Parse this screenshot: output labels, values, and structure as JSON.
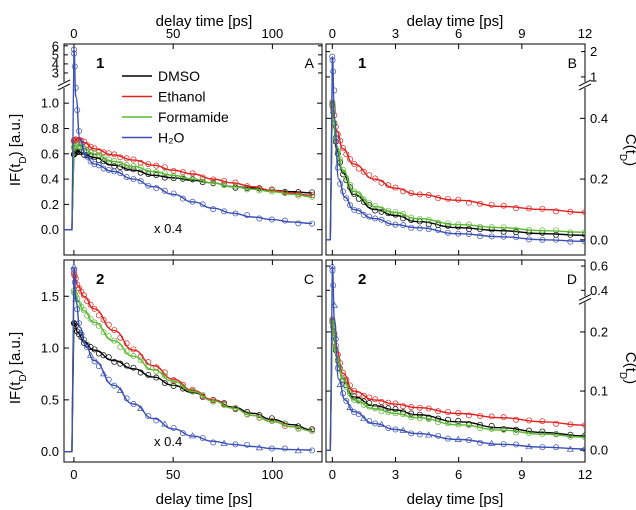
{
  "chart_data": [
    {
      "panel": "A",
      "type": "line",
      "sample_label": "1",
      "xlabel": "delay time [ps]",
      "ylabel": "IF(t_D) [a.u.]",
      "xlim": [
        -5,
        125
      ],
      "ylim_main": [
        -0.2,
        1.12
      ],
      "ylim_break": [
        2,
        6.2
      ],
      "xticks": [
        0,
        50,
        100
      ],
      "yticks_main": [
        0.0,
        0.2,
        0.4,
        0.6,
        0.8,
        1.0
      ],
      "yticks_break": [
        3,
        4,
        5,
        6
      ],
      "annotation": "x 0.4",
      "series": [
        {
          "name": "DMSO",
          "color": "#000000",
          "x": [
            0,
            2,
            5,
            10,
            20,
            30,
            40,
            50,
            60,
            70,
            80,
            90,
            100,
            110,
            120
          ],
          "y": [
            0.6,
            0.62,
            0.6,
            0.57,
            0.51,
            0.47,
            0.43,
            0.41,
            0.39,
            0.37,
            0.34,
            0.33,
            0.31,
            0.3,
            0.29
          ]
        },
        {
          "name": "Ethanol",
          "color": "#e0221f",
          "x": [
            0,
            2,
            5,
            10,
            20,
            30,
            40,
            50,
            60,
            70,
            80,
            90,
            100,
            110,
            120
          ],
          "y": [
            0.7,
            0.72,
            0.69,
            0.64,
            0.59,
            0.55,
            0.51,
            0.47,
            0.44,
            0.4,
            0.37,
            0.34,
            0.31,
            0.29,
            0.27
          ]
        },
        {
          "name": "Formamide",
          "color": "#5bb832",
          "x": [
            0,
            2,
            5,
            10,
            20,
            30,
            40,
            50,
            60,
            70,
            80,
            90,
            100,
            110,
            120
          ],
          "y": [
            0.65,
            0.67,
            0.64,
            0.6,
            0.54,
            0.5,
            0.46,
            0.43,
            0.4,
            0.37,
            0.34,
            0.32,
            0.3,
            0.28,
            0.26
          ]
        },
        {
          "name": "H₂O",
          "color": "#3a4fb5",
          "x": [
            0,
            1,
            3,
            6,
            10,
            20,
            30,
            40,
            50,
            60,
            70,
            80,
            90,
            100,
            110,
            120
          ],
          "y": [
            5.6,
            1.05,
            0.72,
            0.58,
            0.52,
            0.46,
            0.4,
            0.34,
            0.28,
            0.22,
            0.17,
            0.13,
            0.1,
            0.08,
            0.06,
            0.05
          ]
        }
      ]
    },
    {
      "panel": "B",
      "type": "line",
      "sample_label": "1",
      "xlabel": "delay time [ps]",
      "ylabel": "C(t_D)",
      "xlim": [
        -0.3,
        12
      ],
      "ylim_main": [
        -0.05,
        0.5
      ],
      "ylim_break": [
        0.8,
        2.3
      ],
      "xticks": [
        0,
        3,
        6,
        9,
        12
      ],
      "yticks_main": [
        0.0,
        0.2,
        0.4
      ],
      "yticks_break": [
        1,
        2
      ],
      "series": [
        {
          "name": "DMSO",
          "color": "#000000",
          "x": [
            0,
            0.2,
            0.5,
            1,
            2,
            3,
            4,
            6,
            8,
            10,
            12
          ],
          "y": [
            0.45,
            0.3,
            0.22,
            0.15,
            0.1,
            0.08,
            0.06,
            0.04,
            0.03,
            0.02,
            0.015
          ]
        },
        {
          "name": "Ethanol",
          "color": "#e0221f",
          "x": [
            0,
            0.2,
            0.5,
            1,
            2,
            3,
            4,
            6,
            8,
            10,
            12
          ],
          "y": [
            0.45,
            0.36,
            0.3,
            0.25,
            0.2,
            0.17,
            0.15,
            0.13,
            0.11,
            0.1,
            0.09
          ]
        },
        {
          "name": "Formamide",
          "color": "#5bb832",
          "x": [
            0,
            0.2,
            0.5,
            1,
            2,
            3,
            4,
            6,
            8,
            10,
            12
          ],
          "y": [
            0.45,
            0.31,
            0.23,
            0.16,
            0.11,
            0.09,
            0.07,
            0.05,
            0.04,
            0.03,
            0.025
          ]
        },
        {
          "name": "H₂O",
          "color": "#3a4fb5",
          "x": [
            0,
            0.1,
            0.3,
            0.6,
            1,
            2,
            3,
            4,
            6,
            8,
            10,
            12
          ],
          "y": [
            1.8,
            0.4,
            0.2,
            0.14,
            0.1,
            0.07,
            0.05,
            0.04,
            0.02,
            0.01,
            0.0,
            -0.005
          ]
        }
      ]
    },
    {
      "panel": "C",
      "type": "line",
      "sample_label": "2",
      "xlabel": "delay time [ps]",
      "ylabel": "IF(t_D) [a.u.]",
      "xlim": [
        -5,
        125
      ],
      "ylim": [
        -0.1,
        1.85
      ],
      "xticks": [
        0,
        50,
        100
      ],
      "yticks": [
        0.0,
        0.5,
        1.0,
        1.5
      ],
      "annotation": "x 0.4",
      "series": [
        {
          "name": "DMSO",
          "color": "#000000",
          "x": [
            0,
            2,
            5,
            10,
            20,
            30,
            40,
            50,
            60,
            70,
            80,
            90,
            100,
            110,
            120
          ],
          "y": [
            1.25,
            1.15,
            1.06,
            0.98,
            0.88,
            0.8,
            0.72,
            0.64,
            0.57,
            0.5,
            0.43,
            0.37,
            0.31,
            0.26,
            0.21
          ]
        },
        {
          "name": "Ethanol",
          "color": "#e0221f",
          "x": [
            0,
            2,
            5,
            10,
            20,
            30,
            40,
            50,
            60,
            70,
            80,
            90,
            100,
            110,
            120
          ],
          "y": [
            1.72,
            1.6,
            1.5,
            1.38,
            1.17,
            0.98,
            0.83,
            0.7,
            0.59,
            0.5,
            0.42,
            0.35,
            0.29,
            0.24,
            0.2
          ]
        },
        {
          "name": "Formamide",
          "color": "#5bb832",
          "x": [
            0,
            2,
            5,
            10,
            20,
            30,
            40,
            50,
            60,
            70,
            80,
            90,
            100,
            110,
            120
          ],
          "y": [
            1.55,
            1.45,
            1.36,
            1.25,
            1.07,
            0.92,
            0.79,
            0.68,
            0.58,
            0.49,
            0.42,
            0.35,
            0.29,
            0.24,
            0.2
          ]
        },
        {
          "name": "H₂O",
          "color": "#3a4fb5",
          "x": [
            0,
            1,
            3,
            6,
            10,
            20,
            30,
            40,
            50,
            60,
            70,
            80,
            90,
            100,
            110,
            120
          ],
          "y": [
            1.78,
            1.45,
            1.2,
            1.02,
            0.88,
            0.64,
            0.46,
            0.32,
            0.22,
            0.15,
            0.1,
            0.07,
            0.05,
            0.03,
            0.02,
            0.015
          ]
        }
      ]
    },
    {
      "panel": "D",
      "type": "line",
      "sample_label": "2",
      "xlabel": "delay time [ps]",
      "ylabel": "C(t_D)",
      "xlim": [
        -0.3,
        12
      ],
      "ylim_main": [
        -0.02,
        0.25
      ],
      "ylim_break": [
        0.35,
        0.65
      ],
      "xticks": [
        0,
        3,
        6,
        9,
        12
      ],
      "yticks_main": [
        0.0,
        0.1,
        0.2
      ],
      "yticks_break": [
        0.4,
        0.6
      ],
      "series": [
        {
          "name": "DMSO",
          "color": "#000000",
          "x": [
            0,
            0.2,
            0.5,
            1,
            2,
            3,
            4,
            6,
            8,
            10,
            12
          ],
          "y": [
            0.22,
            0.16,
            0.12,
            0.09,
            0.075,
            0.068,
            0.06,
            0.048,
            0.038,
            0.03,
            0.024
          ]
        },
        {
          "name": "Ethanol",
          "color": "#e0221f",
          "x": [
            0,
            0.2,
            0.5,
            1,
            2,
            3,
            4,
            6,
            8,
            10,
            12
          ],
          "y": [
            0.22,
            0.17,
            0.13,
            0.1,
            0.085,
            0.078,
            0.072,
            0.062,
            0.055,
            0.048,
            0.042
          ]
        },
        {
          "name": "Formamide",
          "color": "#5bb832",
          "x": [
            0,
            0.2,
            0.5,
            1,
            2,
            3,
            4,
            6,
            8,
            10,
            12
          ],
          "y": [
            0.22,
            0.16,
            0.12,
            0.085,
            0.07,
            0.062,
            0.055,
            0.043,
            0.034,
            0.027,
            0.022
          ]
        },
        {
          "name": "H₂O",
          "color": "#3a4fb5",
          "x": [
            0,
            0.1,
            0.3,
            0.6,
            1,
            2,
            3,
            4,
            6,
            8,
            10,
            12
          ],
          "y": [
            0.6,
            0.22,
            0.12,
            0.085,
            0.065,
            0.045,
            0.035,
            0.028,
            0.018,
            0.01,
            0.005,
            0.002
          ]
        }
      ]
    }
  ],
  "legend": {
    "placement": "upper panel A",
    "entries": [
      {
        "label": "DMSO",
        "color": "#000000"
      },
      {
        "label": "Ethanol",
        "color": "#e0221f"
      },
      {
        "label": "Formamide",
        "color": "#5bb832"
      },
      {
        "label": "H₂O",
        "color": "#3a4fb5"
      }
    ]
  }
}
